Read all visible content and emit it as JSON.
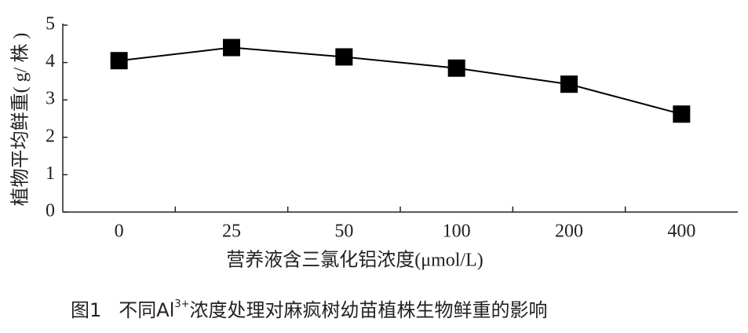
{
  "chart_data": {
    "type": "line",
    "y_label": "植物平均鲜重( g/ 株 )",
    "x_label": "营养液含三氯化铝浓度(μmol/L)",
    "caption": {
      "figure": "图1",
      "before": "不同Al",
      "superscript": "3+",
      "after": "浓度处理对麻疯树幼苗植株生物鲜重的影响"
    },
    "categories": [
      "0",
      "25",
      "50",
      "100",
      "200",
      "400"
    ],
    "values": [
      4.05,
      4.4,
      4.15,
      3.85,
      3.42,
      2.62
    ],
    "color": "#000000",
    "ylim": [
      0,
      5
    ],
    "yticks": [
      0,
      1,
      2,
      3,
      4,
      5
    ],
    "grid": false
  }
}
